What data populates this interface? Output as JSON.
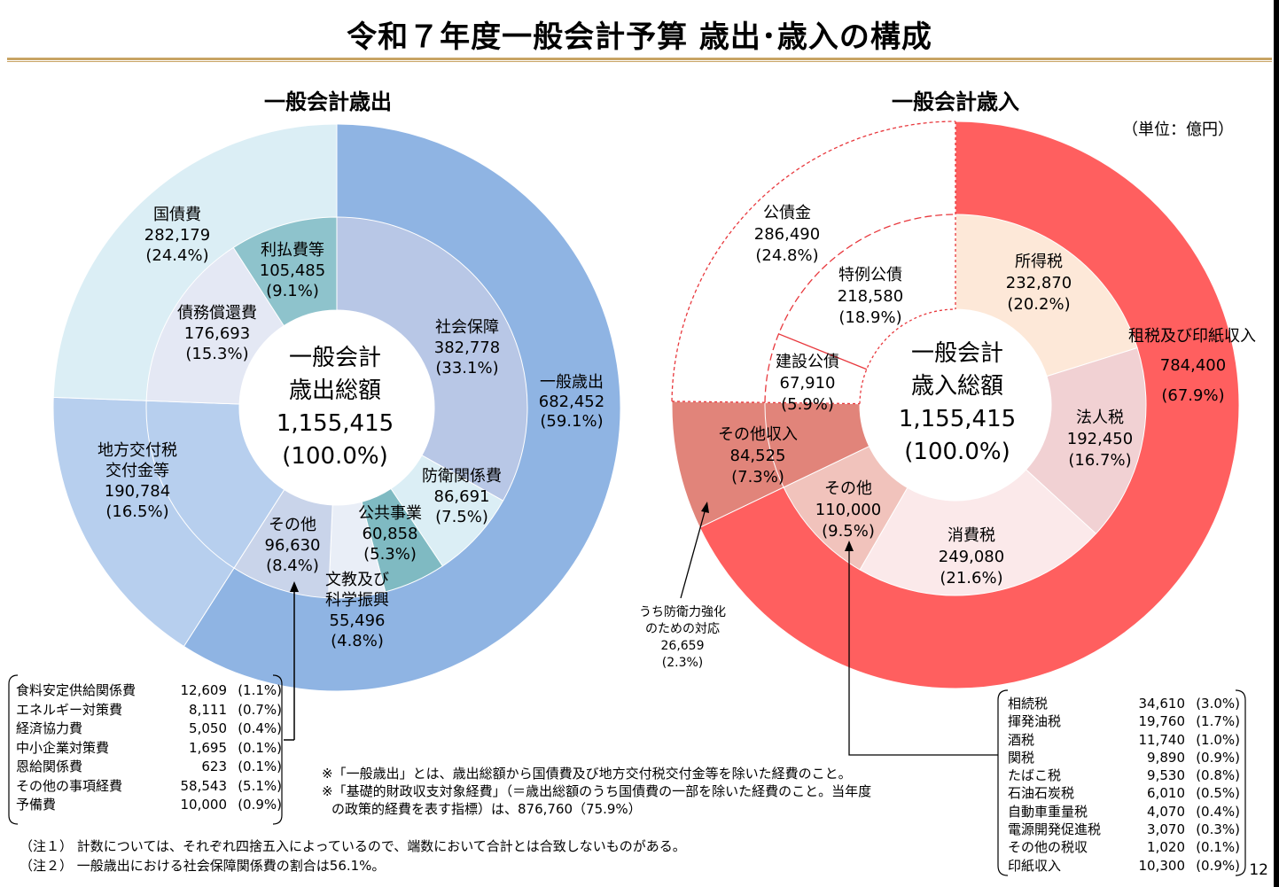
{
  "title": "令和７年度一般会計予算 歳出･歳入の構成",
  "unit": "（単位：億円）",
  "page_number": "12",
  "colors": {
    "exp_outer_general": "#8fb4e3",
    "exp_outer_debt": "#dbeef5",
    "exp_outer_local": "#b7cfee",
    "exp_inner_social": "#b8c7e6",
    "exp_inner_defense": "#dbeef5",
    "exp_inner_public": "#7fbac2",
    "exp_inner_edu": "#e9eef7",
    "exp_inner_other": "#c9d4ea",
    "exp_inner_interest": "#8ec3cc",
    "exp_inner_redemption": "#e4e8f4",
    "exp_inner_local": "#b7cfee",
    "rev_outer_tax": "#ff5f5f",
    "rev_outer_misc": "#e1847a",
    "rev_outer_bond": "#ffffff",
    "rev_inner_income": "#fde8d8",
    "rev_inner_corp": "#f1d1d3",
    "rev_inner_consumption": "#fbe9ea",
    "rev_inner_other_tax": "#f1c3bc",
    "bond_line": "#e8383d"
  },
  "chart_data": [
    {
      "type": "pie",
      "title": "一般会計歳出",
      "center_label": [
        "一般会計",
        "歳出総額",
        "1,155,415",
        "(100.0%)"
      ],
      "total": 1155415,
      "outer_ring": [
        {
          "name": "一般歳出",
          "value": 682452,
          "pct": "(59.1%)",
          "value_text": "682,452"
        },
        {
          "name": "地方交付税交付金等",
          "label_lines": [
            "地方交付税",
            "交付金等"
          ],
          "value": 190784,
          "pct": "(16.5%)",
          "value_text": "190,784"
        },
        {
          "name": "国債費",
          "value": 282179,
          "pct": "(24.4%)",
          "value_text": "282,179"
        }
      ],
      "inner_ring": [
        {
          "name": "社会保障",
          "value": 382778,
          "pct": "(33.1%)",
          "value_text": "382,778"
        },
        {
          "name": "防衛関係費",
          "value": 86691,
          "pct": "(7.5%)",
          "value_text": "86,691"
        },
        {
          "name": "公共事業",
          "value": 60858,
          "pct": "(5.3%)",
          "value_text": "60,858"
        },
        {
          "name": "文教及び科学振興",
          "label_lines": [
            "文教及び",
            "科学振興"
          ],
          "value": 55496,
          "pct": "(4.8%)",
          "value_text": "55,496"
        },
        {
          "name": "その他",
          "value": 96630,
          "pct": "(8.4%)",
          "value_text": "96,630"
        },
        {
          "name": "地方交付税交付金等",
          "value": 190784
        },
        {
          "name": "債務償還費",
          "value": 176693,
          "pct": "(15.3%)",
          "value_text": "176,693"
        },
        {
          "name": "利払費等",
          "value": 105485,
          "pct": "(9.1%)",
          "value_text": "105,485"
        }
      ],
      "other_breakdown": [
        {
          "name": "食料安定供給関係費",
          "value": "12,609",
          "pct": "(1.1%)"
        },
        {
          "name": "エネルギー対策費",
          "value": "8,111",
          "pct": "(0.7%)"
        },
        {
          "name": "経済協力費",
          "value": "5,050",
          "pct": "(0.4%)"
        },
        {
          "name": "中小企業対策費",
          "value": "1,695",
          "pct": "(0.1%)"
        },
        {
          "name": "恩給関係費",
          "value": "623",
          "pct": "(0.1%)"
        },
        {
          "name": "その他の事項経費",
          "value": "58,543",
          "pct": "(5.1%)"
        },
        {
          "name": "予備費",
          "value": "10,000",
          "pct": "(0.9%)"
        }
      ]
    },
    {
      "type": "pie",
      "title": "一般会計歳入",
      "center_label": [
        "一般会計",
        "歳入総額",
        "1,155,415",
        "(100.0%)"
      ],
      "total": 1155415,
      "outer_ring": [
        {
          "name": "租税及び印紙収入",
          "value": 784400,
          "pct": "(67.9%)",
          "value_text": "784,400"
        },
        {
          "name": "その他収入",
          "value": 84525,
          "pct": "(7.3%)",
          "value_text": "84,525"
        },
        {
          "name": "公債金",
          "value": 286490,
          "pct": "(24.8%)",
          "value_text": "286,490"
        }
      ],
      "inner_ring": [
        {
          "name": "所得税",
          "value": 232870,
          "pct": "(20.2%)",
          "value_text": "232,870"
        },
        {
          "name": "法人税",
          "value": 192450,
          "pct": "(16.7%)",
          "value_text": "192,450"
        },
        {
          "name": "消費税",
          "value": 249080,
          "pct": "(21.6%)",
          "value_text": "249,080"
        },
        {
          "name": "その他",
          "value": 110000,
          "pct": "(9.5%)",
          "value_text": "110,000"
        },
        {
          "name": "その他収入",
          "value": 84525
        },
        {
          "name": "建設公債",
          "value": 67910,
          "pct": "(5.9%)",
          "value_text": "67,910"
        },
        {
          "name": "特例公債",
          "value": 218580,
          "pct": "(18.9%)",
          "value_text": "218,580"
        }
      ],
      "defense_note": [
        "うち防衛力強化",
        "のための対応",
        "26,659",
        "(2.3%)"
      ],
      "other_breakdown": [
        {
          "name": "相続税",
          "value": "34,610",
          "pct": "(3.0%)"
        },
        {
          "name": "揮発油税",
          "value": "19,760",
          "pct": "(1.7%)"
        },
        {
          "name": "酒税",
          "value": "11,740",
          "pct": "(1.0%)"
        },
        {
          "name": "関税",
          "value": "9,890",
          "pct": "(0.9%)"
        },
        {
          "name": "たばこ税",
          "value": "9,530",
          "pct": "(0.8%)"
        },
        {
          "name": "石油石炭税",
          "value": "6,010",
          "pct": "(0.5%)"
        },
        {
          "name": "自動車重量税",
          "value": "4,070",
          "pct": "(0.4%)"
        },
        {
          "name": "電源開発促進税",
          "value": "3,070",
          "pct": "(0.3%)"
        },
        {
          "name": "その他の税収",
          "value": "1,020",
          "pct": "(0.1%)"
        },
        {
          "name": "印紙収入",
          "value": "10,300",
          "pct": "(0.9%)"
        }
      ]
    }
  ],
  "notes": {
    "general_exp": "※「一般歳出」とは、歳出総額から国債費及び地方交付税交付金等を除いた経費のこと。",
    "primary_balance_1": "※「基礎的財政収支対象経費」（＝歳出総額のうち国債費の一部を除いた経費のこと。当年度",
    "primary_balance_2": "の政策的経費を表す指標）は、876,760（75.9%）",
    "note1": "（注１） 計数については、それぞれ四捨五入によっているので、端数において合計とは合致しないものがある。",
    "note2": "（注２） 一般歳出における社会保障関係費の割合は56.1%。"
  }
}
